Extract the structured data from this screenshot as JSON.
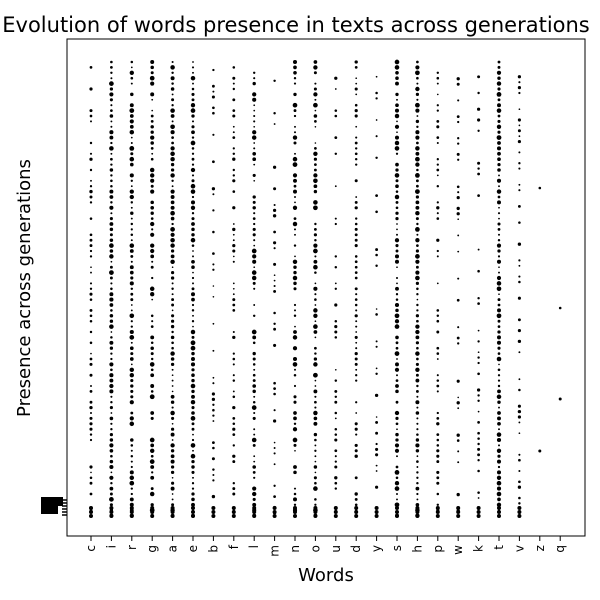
{
  "chart_data": {
    "type": "scatter",
    "title": "Evolution of words presence in texts across generations",
    "xlabel": "Words",
    "ylabel": "Presence across generations",
    "categories": [
      "c",
      "i",
      "r",
      "g",
      "a",
      "e",
      "b",
      "f",
      "l",
      "m",
      "n",
      "o",
      "u",
      "d",
      "y",
      "s",
      "h",
      "p",
      "w",
      "k",
      "t",
      "v",
      "z",
      "q"
    ],
    "grid": false,
    "legend": "none",
    "series": [
      {
        "values": [
          {
            "word": "c",
            "presence": [
              1,
              10,
              2,
              30,
              4,
              20,
              6,
              15
            ]
          },
          {
            "word": "i",
            "presence": [
              1,
              12,
              2,
              18,
              3,
              25,
              4,
              9
            ]
          },
          {
            "word": "r",
            "presence": [
              1,
              8,
              2,
              14,
              3,
              22,
              5,
              11
            ]
          },
          {
            "word": "g",
            "presence": [
              1,
              6,
              2,
              9,
              3,
              12
            ]
          },
          {
            "word": "a",
            "presence": [
              1,
              15,
              2,
              28,
              4,
              40,
              6,
              19
            ]
          },
          {
            "word": "e",
            "presence": [
              1,
              20,
              2,
              35,
              3,
              45,
              5,
              24
            ]
          },
          {
            "word": "b",
            "presence": [
              1,
              4,
              2,
              7,
              3,
              5
            ]
          },
          {
            "word": "f",
            "presence": [
              1,
              5,
              2,
              8,
              3,
              10
            ]
          },
          {
            "word": "l",
            "presence": [
              1,
              9,
              2,
              16,
              3,
              21
            ]
          },
          {
            "word": "m",
            "presence": [
              1,
              3,
              2,
              6,
              3,
              4
            ]
          },
          {
            "word": "n",
            "presence": [
              1,
              11,
              2,
              17,
              3,
              23
            ]
          },
          {
            "word": "o",
            "presence": [
              1,
              13,
              2,
              19,
              3,
              26
            ]
          },
          {
            "word": "u",
            "presence": [
              1,
              4,
              2,
              9,
              3,
              6
            ]
          },
          {
            "word": "d",
            "presence": [
              1,
              7,
              2,
              12,
              3,
              15
            ]
          },
          {
            "word": "y",
            "presence": [
              1,
              2,
              2,
              3
            ]
          },
          {
            "word": "s",
            "presence": [
              1,
              14,
              2,
              22,
              3,
              30
            ]
          },
          {
            "word": "h",
            "presence": [
              1,
              12,
              2,
              20,
              3,
              27
            ]
          },
          {
            "word": "p",
            "presence": [
              1,
              6,
              2,
              10,
              3,
              13
            ]
          },
          {
            "word": "w",
            "presence": [
              1,
              3,
              2,
              5,
              3,
              4
            ]
          },
          {
            "word": "k",
            "presence": [
              1,
              3,
              2,
              4
            ]
          },
          {
            "word": "t",
            "presence": [
              1,
              16,
              2,
              24,
              3,
              33
            ]
          },
          {
            "word": "v",
            "presence": [
              1,
              2,
              2,
              3
            ]
          },
          {
            "word": "z",
            "presence": [
              1,
              1,
              2,
              1
            ]
          },
          {
            "word": "q",
            "presence": [
              1,
              1,
              2,
              1
            ]
          }
        ]
      }
    ]
  }
}
